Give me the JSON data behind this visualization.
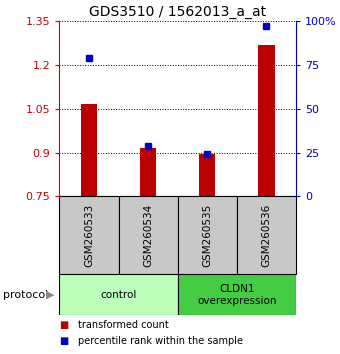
{
  "title": "GDS3510 / 1562013_a_at",
  "samples": [
    "GSM260533",
    "GSM260534",
    "GSM260535",
    "GSM260536"
  ],
  "transformed_counts": [
    1.065,
    0.915,
    0.895,
    1.27
  ],
  "percentile_ranks": [
    79,
    29,
    24,
    97
  ],
  "bar_color": "#bb0000",
  "point_color": "#0000cc",
  "left_ylim": [
    0.75,
    1.35
  ],
  "right_ylim": [
    0,
    100
  ],
  "left_yticks": [
    0.75,
    0.9,
    1.05,
    1.2,
    1.35
  ],
  "right_yticks": [
    0,
    25,
    50,
    75,
    100
  ],
  "right_yticklabels": [
    "0",
    "25",
    "50",
    "75",
    "100%"
  ],
  "groups": [
    {
      "label": "control",
      "samples": [
        0,
        1
      ],
      "color": "#bbffbb"
    },
    {
      "label": "CLDN1\noverexpression",
      "samples": [
        2,
        3
      ],
      "color": "#44cc44"
    }
  ],
  "legend_items": [
    {
      "label": "transformed count",
      "color": "#bb0000"
    },
    {
      "label": "percentile rank within the sample",
      "color": "#0000cc"
    }
  ],
  "protocol_label": "protocol",
  "sample_box_color": "#c8c8c8",
  "bar_bottom": 0.75,
  "bar_width": 0.28
}
